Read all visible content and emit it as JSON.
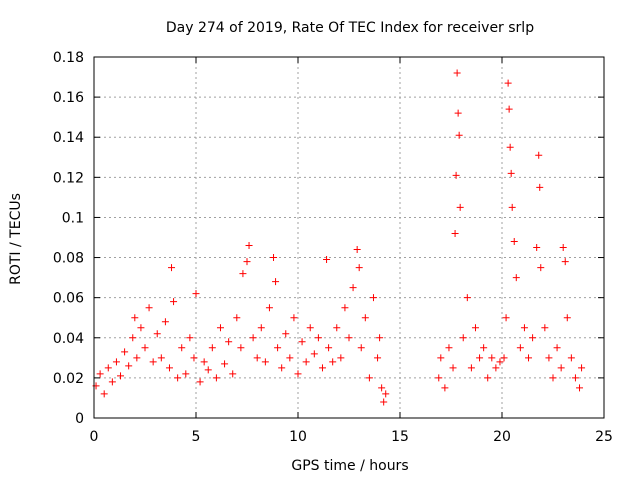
{
  "chart_data": {
    "type": "scatter",
    "title": "Day 274 of 2019, Rate Of TEC Index for receiver srlp",
    "xlabel": "GPS time / hours",
    "ylabel": "ROTI / TECUs",
    "xlim": [
      0,
      25
    ],
    "ylim": [
      0,
      0.18
    ],
    "x_ticks": [
      0,
      5,
      10,
      15,
      20,
      25
    ],
    "y_ticks": [
      0,
      0.02,
      0.04,
      0.06,
      0.08,
      0.1,
      0.12,
      0.14,
      0.16,
      0.18
    ],
    "x_tick_labels": [
      "0",
      "5",
      "10",
      "15",
      "20",
      "25"
    ],
    "y_tick_labels": [
      "0",
      "0.02",
      "0.04",
      "0.06",
      "0.08",
      "0.1",
      "0.12",
      "0.14",
      "0.16",
      "0.18"
    ],
    "grid": true,
    "marker": "+",
    "color": "#ff0000",
    "series": [
      {
        "name": "ROTI",
        "points": [
          [
            0.1,
            0.016
          ],
          [
            0.3,
            0.022
          ],
          [
            0.5,
            0.012
          ],
          [
            0.7,
            0.025
          ],
          [
            0.9,
            0.018
          ],
          [
            1.1,
            0.028
          ],
          [
            1.3,
            0.021
          ],
          [
            1.5,
            0.033
          ],
          [
            1.7,
            0.026
          ],
          [
            1.9,
            0.04
          ],
          [
            2.0,
            0.05
          ],
          [
            2.1,
            0.03
          ],
          [
            2.3,
            0.045
          ],
          [
            2.5,
            0.035
          ],
          [
            2.7,
            0.055
          ],
          [
            2.9,
            0.028
          ],
          [
            3.1,
            0.042
          ],
          [
            3.3,
            0.03
          ],
          [
            3.5,
            0.048
          ],
          [
            3.7,
            0.025
          ],
          [
            3.8,
            0.075
          ],
          [
            3.9,
            0.058
          ],
          [
            4.1,
            0.02
          ],
          [
            4.3,
            0.035
          ],
          [
            4.5,
            0.022
          ],
          [
            4.7,
            0.04
          ],
          [
            4.9,
            0.03
          ],
          [
            5.0,
            0.062
          ],
          [
            5.2,
            0.018
          ],
          [
            5.4,
            0.028
          ],
          [
            5.6,
            0.024
          ],
          [
            5.8,
            0.035
          ],
          [
            6.0,
            0.02
          ],
          [
            6.2,
            0.045
          ],
          [
            6.4,
            0.027
          ],
          [
            6.6,
            0.038
          ],
          [
            6.8,
            0.022
          ],
          [
            7.0,
            0.05
          ],
          [
            7.2,
            0.035
          ],
          [
            7.3,
            0.072
          ],
          [
            7.5,
            0.078
          ],
          [
            7.6,
            0.086
          ],
          [
            7.8,
            0.04
          ],
          [
            8.0,
            0.03
          ],
          [
            8.2,
            0.045
          ],
          [
            8.4,
            0.028
          ],
          [
            8.6,
            0.055
          ],
          [
            8.8,
            0.08
          ],
          [
            8.9,
            0.068
          ],
          [
            9.0,
            0.035
          ],
          [
            9.2,
            0.025
          ],
          [
            9.4,
            0.042
          ],
          [
            9.6,
            0.03
          ],
          [
            9.8,
            0.05
          ],
          [
            10.0,
            0.022
          ],
          [
            10.2,
            0.038
          ],
          [
            10.4,
            0.028
          ],
          [
            10.6,
            0.045
          ],
          [
            10.8,
            0.032
          ],
          [
            11.0,
            0.04
          ],
          [
            11.2,
            0.025
          ],
          [
            11.4,
            0.079
          ],
          [
            11.5,
            0.035
          ],
          [
            11.7,
            0.028
          ],
          [
            11.9,
            0.045
          ],
          [
            12.1,
            0.03
          ],
          [
            12.3,
            0.055
          ],
          [
            12.5,
            0.04
          ],
          [
            12.7,
            0.065
          ],
          [
            12.9,
            0.084
          ],
          [
            13.0,
            0.075
          ],
          [
            13.1,
            0.035
          ],
          [
            13.3,
            0.05
          ],
          [
            13.5,
            0.02
          ],
          [
            13.7,
            0.06
          ],
          [
            13.9,
            0.03
          ],
          [
            14.0,
            0.04
          ],
          [
            14.1,
            0.015
          ],
          [
            14.2,
            0.008
          ],
          [
            14.3,
            0.012
          ],
          [
            16.9,
            0.02
          ],
          [
            17.0,
            0.03
          ],
          [
            17.2,
            0.015
          ],
          [
            17.4,
            0.035
          ],
          [
            17.6,
            0.025
          ],
          [
            17.7,
            0.092
          ],
          [
            17.75,
            0.121
          ],
          [
            17.8,
            0.172
          ],
          [
            17.85,
            0.152
          ],
          [
            17.9,
            0.141
          ],
          [
            17.95,
            0.105
          ],
          [
            18.1,
            0.04
          ],
          [
            18.3,
            0.06
          ],
          [
            18.5,
            0.025
          ],
          [
            18.7,
            0.045
          ],
          [
            18.9,
            0.03
          ],
          [
            19.1,
            0.035
          ],
          [
            19.3,
            0.02
          ],
          [
            19.5,
            0.03
          ],
          [
            19.7,
            0.025
          ],
          [
            19.9,
            0.028
          ],
          [
            20.1,
            0.03
          ],
          [
            20.2,
            0.05
          ],
          [
            20.3,
            0.167
          ],
          [
            20.35,
            0.154
          ],
          [
            20.4,
            0.135
          ],
          [
            20.45,
            0.122
          ],
          [
            20.5,
            0.105
          ],
          [
            20.6,
            0.088
          ],
          [
            20.7,
            0.07
          ],
          [
            20.9,
            0.035
          ],
          [
            21.1,
            0.045
          ],
          [
            21.3,
            0.03
          ],
          [
            21.5,
            0.04
          ],
          [
            21.7,
            0.085
          ],
          [
            21.8,
            0.131
          ],
          [
            21.85,
            0.115
          ],
          [
            21.9,
            0.075
          ],
          [
            22.1,
            0.045
          ],
          [
            22.3,
            0.03
          ],
          [
            22.5,
            0.02
          ],
          [
            22.7,
            0.035
          ],
          [
            22.9,
            0.025
          ],
          [
            23.0,
            0.085
          ],
          [
            23.1,
            0.078
          ],
          [
            23.2,
            0.05
          ],
          [
            23.4,
            0.03
          ],
          [
            23.6,
            0.02
          ],
          [
            23.8,
            0.015
          ],
          [
            23.9,
            0.025
          ]
        ]
      }
    ]
  }
}
